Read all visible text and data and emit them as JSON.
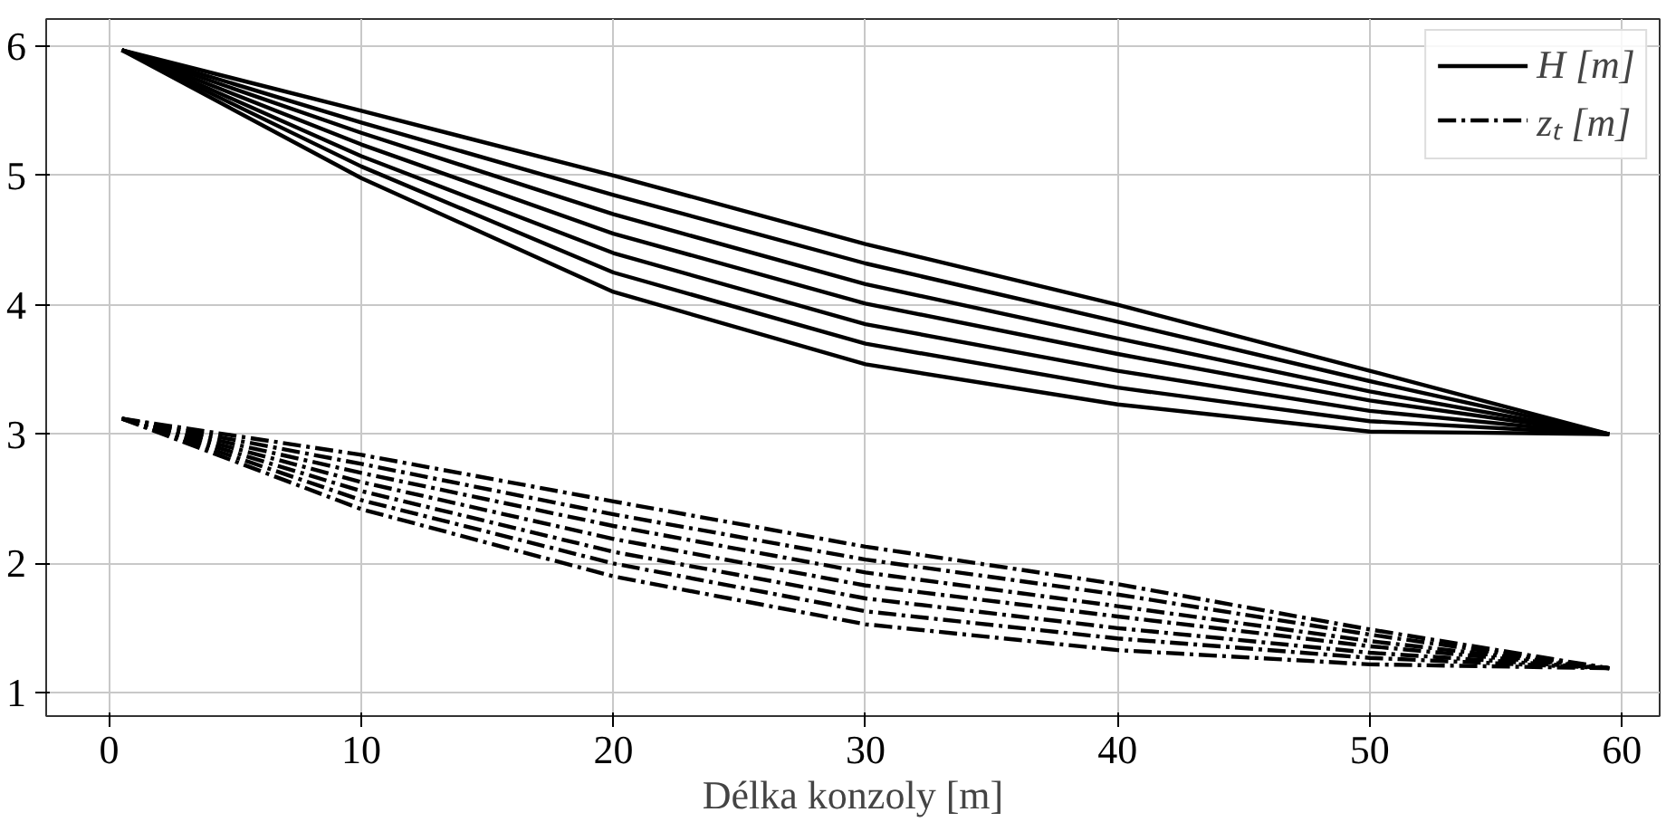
{
  "chart_data": {
    "type": "line",
    "xlabel": "Délka konzoly [m]",
    "xlim": [
      -2.5,
      61.5
    ],
    "ylim": [
      0.82,
      6.21
    ],
    "xticks": [
      0,
      10,
      20,
      30,
      40,
      50,
      60
    ],
    "yticks": [
      1,
      2,
      3,
      4,
      5,
      6
    ],
    "grid": true,
    "legend": "top right",
    "marker": "none",
    "series": [
      {
        "name": "H [m]",
        "color": "#000000",
        "line_style": "solid",
        "x": [
          0.5,
          10,
          20,
          30,
          40,
          50,
          59.5
        ],
        "values": [
          5.97,
          5.5,
          5.0,
          4.47,
          4.0,
          3.49,
          3.0
        ]
      },
      {
        "color": "#000000",
        "line_style": "solid",
        "x": [
          0.5,
          10,
          20,
          30,
          40,
          50,
          59.5
        ],
        "values": [
          5.97,
          5.41,
          4.85,
          4.32,
          3.87,
          3.41,
          3.0
        ]
      },
      {
        "color": "#000000",
        "line_style": "solid",
        "x": [
          0.5,
          10,
          20,
          30,
          40,
          50,
          59.5
        ],
        "values": [
          5.97,
          5.33,
          4.7,
          4.16,
          3.74,
          3.33,
          3.0
        ]
      },
      {
        "color": "#000000",
        "line_style": "solid",
        "x": [
          0.5,
          10,
          20,
          30,
          40,
          50,
          59.5
        ],
        "values": [
          5.97,
          5.24,
          4.55,
          4.01,
          3.62,
          3.26,
          3.0
        ]
      },
      {
        "color": "#000000",
        "line_style": "solid",
        "x": [
          0.5,
          10,
          20,
          30,
          40,
          50,
          59.5
        ],
        "values": [
          5.97,
          5.15,
          4.4,
          3.85,
          3.49,
          3.18,
          3.0
        ]
      },
      {
        "color": "#000000",
        "line_style": "solid",
        "x": [
          0.5,
          10,
          20,
          30,
          40,
          50,
          59.5
        ],
        "values": [
          5.97,
          5.07,
          4.25,
          3.7,
          3.36,
          3.1,
          3.0
        ]
      },
      {
        "color": "#000000",
        "line_style": "solid",
        "x": [
          0.5,
          10,
          20,
          30,
          40,
          50,
          59.5
        ],
        "values": [
          5.97,
          4.98,
          4.1,
          3.54,
          3.23,
          3.02,
          3.0
        ]
      },
      {
        "name": "zₜ [m]",
        "color": "#000000",
        "line_style": "dashdot",
        "x": [
          0.5,
          10,
          20,
          30,
          40,
          50,
          59.5
        ],
        "values": [
          3.12,
          2.84,
          2.48,
          2.13,
          1.84,
          1.49,
          1.19
        ]
      },
      {
        "color": "#000000",
        "line_style": "dashdot",
        "x": [
          0.5,
          10,
          20,
          30,
          40,
          50,
          59.5
        ],
        "values": [
          3.12,
          2.77,
          2.38,
          2.03,
          1.76,
          1.45,
          1.19
        ]
      },
      {
        "color": "#000000",
        "line_style": "dashdot",
        "x": [
          0.5,
          10,
          20,
          30,
          40,
          50,
          59.5
        ],
        "values": [
          3.12,
          2.7,
          2.29,
          1.93,
          1.67,
          1.4,
          1.19
        ]
      },
      {
        "color": "#000000",
        "line_style": "dashdot",
        "x": [
          0.5,
          10,
          20,
          30,
          40,
          50,
          59.5
        ],
        "values": [
          3.12,
          2.63,
          2.19,
          1.83,
          1.59,
          1.36,
          1.19
        ]
      },
      {
        "color": "#000000",
        "line_style": "dashdot",
        "x": [
          0.5,
          10,
          20,
          30,
          40,
          50,
          59.5
        ],
        "values": [
          3.12,
          2.56,
          2.09,
          1.73,
          1.5,
          1.31,
          1.19
        ]
      },
      {
        "color": "#000000",
        "line_style": "dashdot",
        "x": [
          0.5,
          10,
          20,
          30,
          40,
          50,
          59.5
        ],
        "values": [
          3.12,
          2.49,
          2.0,
          1.63,
          1.42,
          1.27,
          1.19
        ]
      },
      {
        "color": "#000000",
        "line_style": "dashdot",
        "x": [
          0.5,
          10,
          20,
          30,
          40,
          50,
          59.5
        ],
        "values": [
          3.12,
          2.42,
          1.9,
          1.53,
          1.33,
          1.22,
          1.19
        ]
      }
    ]
  }
}
